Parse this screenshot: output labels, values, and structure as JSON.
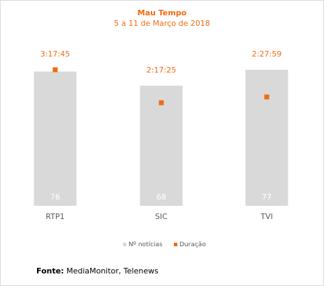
{
  "chart_data": {
    "type": "bar",
    "title": "Mau Tempo",
    "subtitle": "5 a 11 de Março de 2018",
    "categories": [
      "RTP1",
      "SIC",
      "TVI"
    ],
    "series": [
      {
        "name": "Nº notícias",
        "kind": "bar",
        "color": "#d9d9d9",
        "values": [
          76,
          68,
          77
        ]
      },
      {
        "name": "Duração",
        "kind": "marker",
        "color": "#f26a10",
        "values_seconds": [
          11865,
          8245,
          8879
        ],
        "labels": [
          "3:17:45",
          "2:17:25",
          "2:27:59"
        ]
      }
    ],
    "legend_position": "bottom",
    "grid": false
  },
  "source": {
    "label": "Fonte:",
    "text": "MediaMonitor, Telenews"
  }
}
